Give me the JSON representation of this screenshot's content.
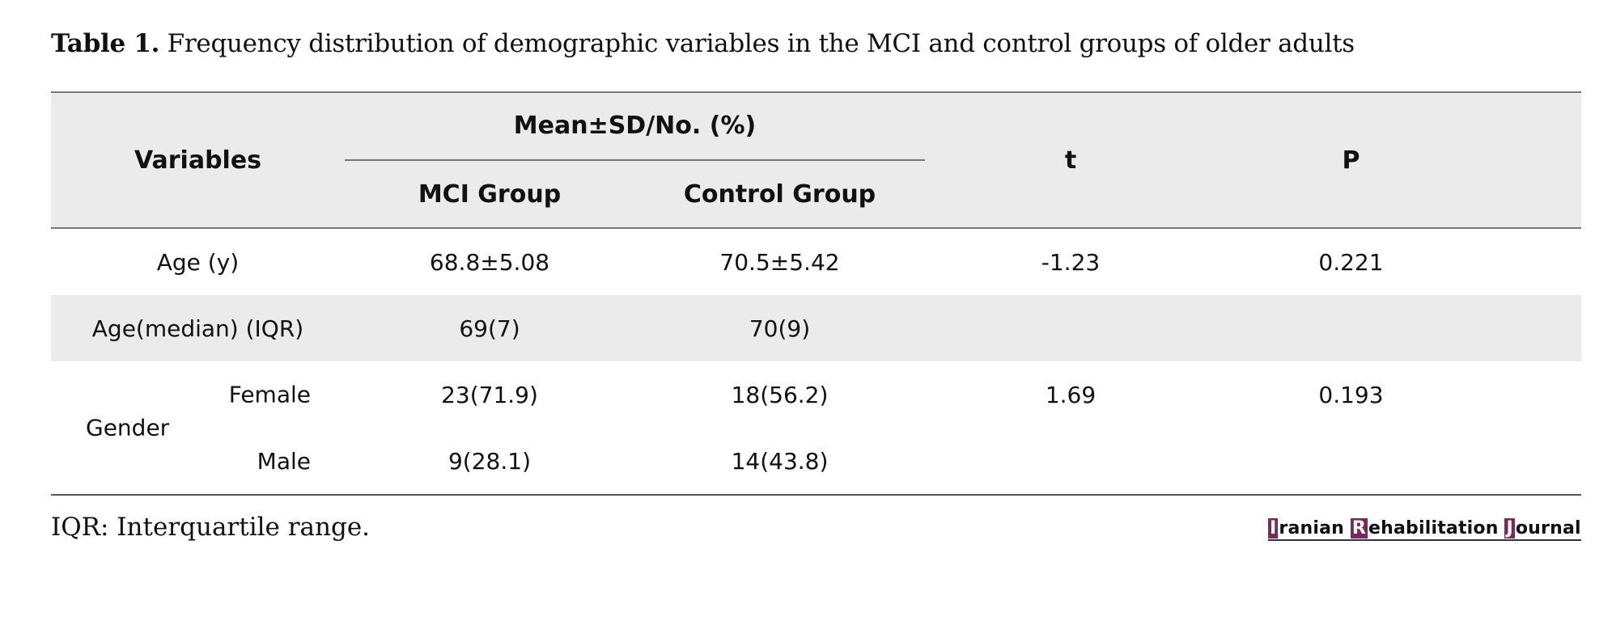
{
  "caption": {
    "label": "Table 1.",
    "text": " Frequency distribution of demographic variables in the MCI and control groups of older adults"
  },
  "table": {
    "headers": {
      "variables": "Variables",
      "group": "Mean±SD/No. (%)",
      "mci": "MCI Group",
      "control": "Control Group",
      "t": "t",
      "p": "P"
    },
    "rows": [
      {
        "label": "Age (y)",
        "mci": "68.8±5.08",
        "control": "70.5±5.42",
        "t": "-1.23",
        "p": "0.221"
      },
      {
        "label": "Age(median) (IQR)",
        "mci": "69(7)",
        "control": "70(9)",
        "t": "",
        "p": ""
      }
    ],
    "gender": {
      "label": "Gender",
      "female": {
        "label": "Female",
        "mci": "23(71.9)",
        "control": "18(56.2)",
        "t": "1.69",
        "p": "0.193"
      },
      "male": {
        "label": "Male",
        "mci": "9(28.1)",
        "control": "14(43.8)",
        "t": "",
        "p": ""
      }
    }
  },
  "footnote": "IQR: Interquartile range.",
  "journal": {
    "i": "I",
    "ranian": "ranian ",
    "r": "R",
    "ehabilitation": "ehabilitation ",
    "j": "J",
    "ournal": "ournal",
    "accent_color": "#7a2a5a"
  }
}
